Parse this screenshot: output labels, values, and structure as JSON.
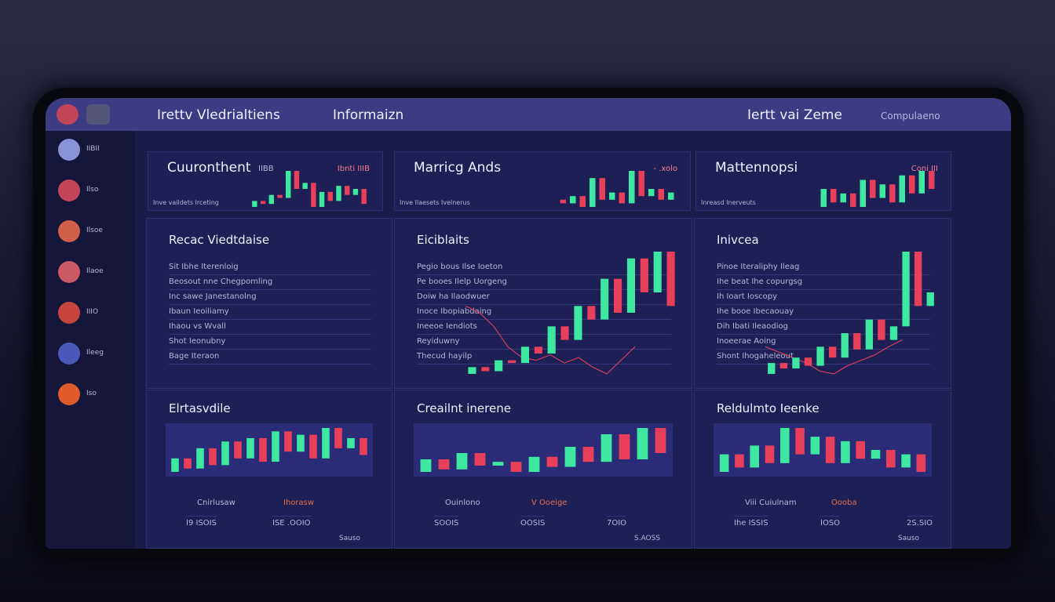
{
  "header": {
    "title": "Irettv Vledrialtiens",
    "nav": "Informaizn",
    "right_title": "Iertt vai Zeme",
    "menu": "Compulaeno"
  },
  "sidebar": {
    "items": [
      "IIBII",
      "Ilso",
      "Ilsoe",
      "Ilaoe",
      "IIIO",
      "Ileeg",
      "Iso"
    ]
  },
  "cards": [
    {
      "title": "Cuuronthent",
      "value": "IIBB",
      "right": "Ibnti IIIB",
      "sub": "Inve vaildets Irceting",
      "candles": [
        [
          20,
          30
        ],
        [
          30,
          25
        ],
        [
          25,
          40
        ],
        [
          40,
          35
        ],
        [
          35,
          80
        ],
        [
          80,
          50
        ],
        [
          50,
          60
        ],
        [
          60,
          20
        ],
        [
          20,
          45
        ],
        [
          45,
          30
        ],
        [
          30,
          55
        ],
        [
          55,
          40
        ],
        [
          40,
          50
        ],
        [
          50,
          25
        ]
      ]
    },
    {
      "title": "Marricg Ands",
      "value": "",
      "right": "- .xolo",
      "sub": "Inve Ilaesets Ivelnerus",
      "candles": [
        [
          30,
          25
        ],
        [
          25,
          35
        ],
        [
          35,
          20
        ],
        [
          20,
          60
        ],
        [
          60,
          30
        ],
        [
          30,
          40
        ],
        [
          40,
          25
        ],
        [
          25,
          70
        ],
        [
          70,
          35
        ],
        [
          35,
          45
        ],
        [
          45,
          30
        ],
        [
          30,
          40
        ]
      ]
    },
    {
      "title": "Mattennopsi",
      "value": "",
      "right": "Coni III",
      "sub": "Inreasd Inerveuts",
      "candles": [
        [
          20,
          40
        ],
        [
          40,
          25
        ],
        [
          25,
          35
        ],
        [
          35,
          20
        ],
        [
          20,
          50
        ],
        [
          50,
          30
        ],
        [
          30,
          45
        ],
        [
          45,
          25
        ],
        [
          25,
          55
        ],
        [
          55,
          35
        ],
        [
          35,
          60
        ],
        [
          60,
          40
        ]
      ]
    }
  ],
  "panels": [
    {
      "title": "Recac Viedtdaise",
      "rows": [
        "Sit Ibhe Iterenloig",
        "Beosout nne Chegpomling",
        "Inc sawe Janestanolng",
        "Ibaun Ieoiliamy",
        "Ihaou vs Wvall",
        "Shot Ieonubny",
        "Bage Iteraon"
      ]
    },
    {
      "title": "Eiciblaits",
      "rows": [
        "Pegio bous Ilse Ioeton",
        "Pe booes Ilelp Uorgeng",
        "Doiw ha Ilaodwuer",
        "Inoce Ibopiabdaing",
        "Ineeoe Iendiots",
        "Reyiduwny",
        "Thecud hayilp"
      ],
      "candles": [
        [
          10,
          15
        ],
        [
          15,
          12
        ],
        [
          12,
          20
        ],
        [
          20,
          18
        ],
        [
          18,
          30
        ],
        [
          30,
          25
        ],
        [
          25,
          45
        ],
        [
          45,
          35
        ],
        [
          35,
          60
        ],
        [
          60,
          50
        ],
        [
          50,
          80
        ],
        [
          80,
          55
        ],
        [
          55,
          95
        ],
        [
          95,
          70
        ],
        [
          70,
          100
        ],
        [
          100,
          60
        ]
      ],
      "line": [
        60,
        55,
        45,
        30,
        22,
        20,
        24,
        18,
        22,
        15,
        10,
        20,
        30
      ]
    },
    {
      "title": "Inivcea",
      "rows": [
        "Pinoe Iteraliphy Ileag",
        "Ihe beat Ihe copurgsg",
        "Ih Ioart Ioscopy",
        "Ihe booe Ibecaouay",
        "Dih Ibati Ileaodiog",
        "Inoeerae Aoing",
        "Shont Ihogaheleout"
      ],
      "candles": [
        [
          10,
          18
        ],
        [
          18,
          14
        ],
        [
          14,
          22
        ],
        [
          22,
          16
        ],
        [
          16,
          30
        ],
        [
          30,
          22
        ],
        [
          22,
          40
        ],
        [
          40,
          28
        ],
        [
          28,
          50
        ],
        [
          50,
          35
        ],
        [
          35,
          45
        ],
        [
          45,
          100
        ],
        [
          100,
          60
        ],
        [
          60,
          70
        ]
      ],
      "line": [
        30,
        26,
        22,
        18,
        12,
        10,
        16,
        20,
        24,
        30,
        35
      ]
    }
  ],
  "bottom": [
    {
      "title": "Elrtasvdile",
      "labels": [
        "Cnirlusaw",
        "Ihorasw"
      ],
      "stats": [
        "I9 ISOIS",
        "ISE .OOIO"
      ],
      "foot": "Sauso",
      "candles": [
        [
          10,
          30
        ],
        [
          30,
          15
        ],
        [
          15,
          45
        ],
        [
          45,
          20
        ],
        [
          20,
          55
        ],
        [
          55,
          30
        ],
        [
          30,
          60
        ],
        [
          60,
          25
        ],
        [
          25,
          70
        ],
        [
          70,
          40
        ],
        [
          40,
          65
        ],
        [
          65,
          30
        ],
        [
          30,
          75
        ],
        [
          75,
          45
        ],
        [
          45,
          60
        ],
        [
          60,
          35
        ]
      ]
    },
    {
      "title": "Creailnt inerene",
      "labels": [
        "Ouinlono",
        "V Ooeige"
      ],
      "stats": [
        "SOOIS",
        "OOSIS",
        "7OIO"
      ],
      "foot": "S.AOSS",
      "candles": [
        [
          10,
          20
        ],
        [
          20,
          12
        ],
        [
          12,
          25
        ],
        [
          25,
          15
        ],
        [
          15,
          18
        ],
        [
          18,
          10
        ],
        [
          10,
          22
        ],
        [
          22,
          14
        ],
        [
          14,
          30
        ],
        [
          30,
          18
        ],
        [
          18,
          40
        ],
        [
          40,
          20
        ],
        [
          20,
          45
        ],
        [
          45,
          25
        ]
      ]
    },
    {
      "title": "Reldulmto Ieenke",
      "labels": [
        "Viii Cuiulnam",
        "Oooba"
      ],
      "stats": [
        "Ihe ISSIS",
        "IOSO",
        "2S.SIO"
      ],
      "foot": "Sauso",
      "candles": [
        [
          10,
          30
        ],
        [
          30,
          15
        ],
        [
          15,
          40
        ],
        [
          40,
          20
        ],
        [
          20,
          60
        ],
        [
          60,
          30
        ],
        [
          30,
          50
        ],
        [
          50,
          20
        ],
        [
          20,
          45
        ],
        [
          45,
          25
        ],
        [
          25,
          35
        ],
        [
          35,
          15
        ],
        [
          15,
          30
        ],
        [
          30,
          10
        ]
      ]
    }
  ]
}
